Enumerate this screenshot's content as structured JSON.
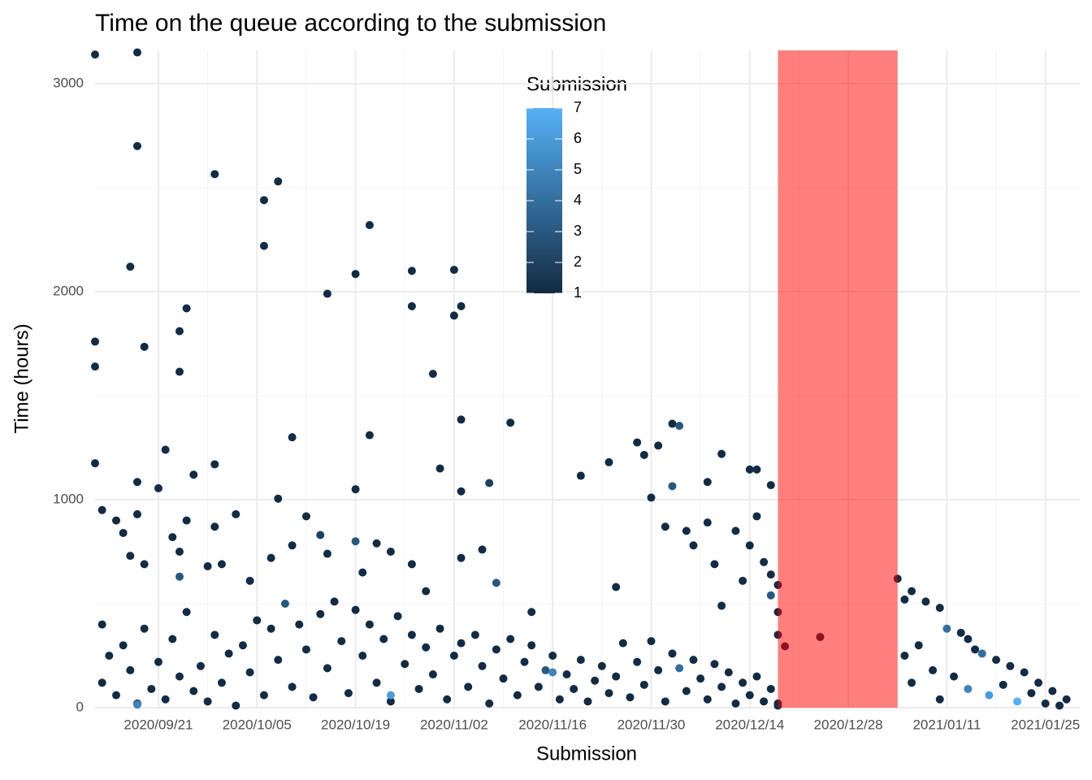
{
  "chart_data": {
    "type": "scatter",
    "title": "Time on the queue according to the submission",
    "x_label": "Submission",
    "y_label": "Time (hours)",
    "xlim": [
      "2020/09/12",
      "2021/01/30"
    ],
    "xticks": [
      "2020/09/21",
      "2020/10/05",
      "2020/10/19",
      "2020/11/02",
      "2020/11/16",
      "2020/11/30",
      "2020/12/14",
      "2020/12/28",
      "2021/01/11",
      "2021/01/25"
    ],
    "ylim": [
      0,
      3160
    ],
    "yticks": [
      0,
      1000,
      2000,
      3000
    ],
    "grid": true,
    "shaded_region": {
      "x": [
        "2020/12/18",
        "2021/01/04"
      ],
      "color": "#ff0000",
      "opacity": 0.5
    },
    "colorbar": {
      "title": "Submission",
      "clim": [
        1,
        7
      ],
      "ticks": [
        1,
        2,
        3,
        4,
        5,
        6,
        7
      ],
      "low_color": "#132B43",
      "high_color": "#56B1F7"
    },
    "x": [
      "2020/09/12",
      "2020/09/18",
      "2020/09/18",
      "2020/09/29",
      "2020/10/06",
      "2020/10/08",
      "2020/10/06",
      "2020/10/21",
      "2020/10/19",
      "2020/10/15",
      "2020/10/27",
      "2020/11/02",
      "2020/11/03",
      "2020/11/02",
      "2020/10/27",
      "2020/09/17",
      "2020/09/25",
      "2020/09/24",
      "2020/09/24",
      "2020/09/12",
      "2020/09/12",
      "2020/09/19",
      "2020/10/30",
      "2020/11/03",
      "2020/11/10",
      "2020/10/21",
      "2020/10/10",
      "2020/11/28",
      "2020/12/01",
      "2020/12/03",
      "2020/12/04",
      "2020/12/10",
      "2020/11/29",
      "2020/09/22",
      "2020/09/29",
      "2020/09/12",
      "2020/09/26",
      "2020/09/18",
      "2020/10/31",
      "2020/11/07",
      "2020/11/20",
      "2020/11/24",
      "2020/10/19",
      "2020/11/03",
      "2020/09/21",
      "2020/12/08",
      "2020/12/14",
      "2020/12/15",
      "2020/12/17",
      "2020/11/30",
      "2020/12/03",
      "2020/10/08",
      "2020/09/13",
      "2020/09/15",
      "2020/09/16",
      "2020/09/17",
      "2020/09/18",
      "2020/09/19",
      "2020/09/23",
      "2020/09/24",
      "2020/09/24",
      "2020/09/25",
      "2020/09/28",
      "2020/09/29",
      "2020/09/30",
      "2020/10/02",
      "2020/10/04",
      "2020/10/07",
      "2020/10/10",
      "2020/10/12",
      "2020/10/14",
      "2020/10/15",
      "2020/10/19",
      "2020/10/20",
      "2020/10/22",
      "2020/10/24",
      "2020/10/27",
      "2020/10/29",
      "2020/11/03",
      "2020/11/06",
      "2020/11/08",
      "2020/11/13",
      "2020/11/25",
      "2020/12/02",
      "2020/12/05",
      "2020/12/06",
      "2020/12/08",
      "2020/12/09",
      "2020/12/10",
      "2020/12/12",
      "2020/12/13",
      "2020/12/14",
      "2020/12/15",
      "2020/12/16",
      "2020/12/17",
      "2020/12/17",
      "2020/12/18",
      "2020/12/18",
      "2020/12/18",
      "2020/12/19",
      "2020/12/24",
      "2020/12/18",
      "2021/01/04",
      "2021/01/05",
      "2021/01/06",
      "2021/01/08",
      "2021/01/10",
      "2021/01/11",
      "2021/01/13",
      "2021/01/14",
      "2021/01/15",
      "2021/01/16",
      "2021/01/18",
      "2021/01/20",
      "2021/01/22",
      "2021/01/24",
      "2021/01/26",
      "2021/01/28",
      "2021/01/05",
      "2021/01/07",
      "2021/01/09",
      "2021/01/12",
      "2021/01/14",
      "2021/01/17",
      "2021/01/19",
      "2021/01/21",
      "2021/01/23",
      "2021/01/25",
      "2021/01/27",
      "2021/01/06",
      "2021/01/10",
      "2020/09/13",
      "2020/09/13",
      "2020/09/14",
      "2020/09/15",
      "2020/09/16",
      "2020/09/17",
      "2020/09/18",
      "2020/09/19",
      "2020/09/20",
      "2020/09/21",
      "2020/09/22",
      "2020/09/23",
      "2020/09/24",
      "2020/09/25",
      "2020/09/26",
      "2020/09/27",
      "2020/09/28",
      "2020/09/29",
      "2020/09/30",
      "2020/10/01",
      "2020/10/02",
      "2020/10/03",
      "2020/10/04",
      "2020/10/05",
      "2020/10/06",
      "2020/10/07",
      "2020/10/08",
      "2020/10/09",
      "2020/10/10",
      "2020/10/11",
      "2020/10/12",
      "2020/10/13",
      "2020/10/14",
      "2020/10/15",
      "2020/10/16",
      "2020/10/17",
      "2020/10/18",
      "2020/10/19",
      "2020/10/20",
      "2020/10/21",
      "2020/10/22",
      "2020/10/23",
      "2020/10/24",
      "2020/10/25",
      "2020/10/26",
      "2020/10/27",
      "2020/10/28",
      "2020/10/29",
      "2020/10/30",
      "2020/10/31",
      "2020/11/01",
      "2020/11/02",
      "2020/11/03",
      "2020/11/04",
      "2020/11/05",
      "2020/11/06",
      "2020/11/07",
      "2020/11/08",
      "2020/11/09",
      "2020/11/10",
      "2020/11/11",
      "2020/11/12",
      "2020/11/13",
      "2020/11/14",
      "2020/11/15",
      "2020/11/16",
      "2020/11/17",
      "2020/11/18",
      "2020/11/19",
      "2020/11/20",
      "2020/11/21",
      "2020/11/22",
      "2020/11/23",
      "2020/11/24",
      "2020/11/25",
      "2020/11/26",
      "2020/11/27",
      "2020/11/28",
      "2020/11/29",
      "2020/11/30",
      "2020/12/01",
      "2020/12/02",
      "2020/12/03",
      "2020/12/04",
      "2020/12/05",
      "2020/12/06",
      "2020/12/07",
      "2020/12/08",
      "2020/12/09",
      "2020/12/10",
      "2020/12/11",
      "2020/12/12",
      "2020/12/13",
      "2020/12/14",
      "2020/12/15",
      "2020/12/16",
      "2020/12/17",
      "2020/12/18",
      "2020/10/24",
      "2020/11/16",
      "2020/09/18"
    ],
    "values": [
      3140,
      3150,
      2700,
      2565,
      2440,
      2530,
      2220,
      2320,
      2085,
      1990,
      2100,
      2105,
      1930,
      1885,
      1930,
      2120,
      1920,
      1810,
      1615,
      1760,
      1640,
      1735,
      1605,
      1385,
      1370,
      1310,
      1300,
      1275,
      1260,
      1365,
      1355,
      1220,
      1215,
      1240,
      1170,
      1175,
      1120,
      1085,
      1150,
      1080,
      1115,
      1180,
      1050,
      1040,
      1055,
      1085,
      1145,
      1145,
      1070,
      1010,
      1065,
      1005,
      950,
      900,
      840,
      730,
      930,
      690,
      820,
      750,
      630,
      900,
      680,
      870,
      690,
      930,
      610,
      720,
      780,
      920,
      830,
      740,
      800,
      650,
      790,
      750,
      690,
      560,
      720,
      760,
      600,
      460,
      580,
      870,
      850,
      780,
      890,
      690,
      490,
      850,
      610,
      780,
      920,
      700,
      640,
      540,
      460,
      590,
      350,
      295,
      340,
      20,
      620,
      520,
      560,
      510,
      480,
      380,
      360,
      330,
      280,
      260,
      230,
      200,
      170,
      120,
      80,
      40,
      250,
      300,
      180,
      150,
      90,
      60,
      110,
      30,
      70,
      20,
      10,
      120,
      40,
      400,
      120,
      250,
      60,
      300,
      180,
      20,
      380,
      90,
      220,
      40,
      330,
      150,
      460,
      80,
      200,
      30,
      350,
      120,
      260,
      10,
      300,
      170,
      420,
      60,
      380,
      230,
      500,
      100,
      400,
      280,
      50,
      450,
      190,
      510,
      320,
      70,
      470,
      250,
      400,
      120,
      330,
      30,
      440,
      210,
      350,
      90,
      290,
      160,
      380,
      40,
      250,
      310,
      100,
      350,
      200,
      20,
      280,
      140,
      330,
      60,
      220,
      300,
      100,
      180,
      250,
      40,
      160,
      90,
      230,
      30,
      130,
      200,
      70,
      150,
      310,
      50,
      220,
      110,
      320,
      180,
      30,
      260,
      190,
      80,
      230,
      140,
      40,
      210,
      100,
      170,
      20,
      120,
      60,
      150,
      30,
      90,
      10,
      60,
      170,
      15
    ],
    "color_values": [
      1,
      1,
      1,
      1,
      1,
      1,
      1,
      1,
      1,
      1,
      1,
      1,
      1,
      1,
      1,
      1,
      1,
      1,
      1,
      1,
      1,
      1,
      1,
      1,
      1,
      1,
      1,
      1,
      1,
      1,
      3,
      1,
      1,
      1,
      1,
      1,
      1,
      1,
      1,
      2,
      1,
      1,
      1,
      1,
      1,
      1,
      1,
      1,
      1,
      1,
      3,
      1,
      1,
      1,
      1,
      1,
      1,
      1,
      1,
      1,
      3,
      1,
      1,
      1,
      1,
      1,
      1,
      1,
      1,
      1,
      2,
      1,
      3,
      1,
      1,
      1,
      1,
      1,
      1,
      1,
      3,
      1,
      1,
      1,
      1,
      1,
      1,
      1,
      1,
      1,
      1,
      1,
      1,
      1,
      1,
      3,
      1,
      1,
      1,
      1,
      1,
      1,
      1,
      1,
      1,
      1,
      1,
      4,
      1,
      1,
      1,
      4,
      1,
      1,
      1,
      1,
      1,
      1,
      1,
      1,
      1,
      1,
      5,
      6,
      1,
      7,
      1,
      1,
      1,
      1,
      1,
      1,
      1,
      1,
      1,
      1,
      1,
      1,
      1,
      1,
      1,
      1,
      1,
      1,
      1,
      1,
      1,
      1,
      1,
      1,
      1,
      1,
      1,
      1,
      1,
      1,
      1,
      1,
      3,
      1,
      1,
      1,
      1,
      1,
      1,
      1,
      1,
      1,
      1,
      1,
      1,
      1,
      1,
      1,
      1,
      1,
      1,
      1,
      1,
      1,
      1,
      1,
      1,
      1,
      1,
      1,
      1,
      1,
      1,
      1,
      1,
      1,
      1,
      1,
      1,
      3,
      1,
      1,
      1,
      1,
      1,
      1,
      1,
      1,
      1,
      1,
      1,
      1,
      1,
      1,
      1,
      1,
      1,
      1,
      4,
      1,
      1,
      1,
      1,
      1,
      1,
      1,
      1,
      1,
      1,
      1,
      1,
      1,
      1,
      6,
      5,
      5
    ]
  }
}
